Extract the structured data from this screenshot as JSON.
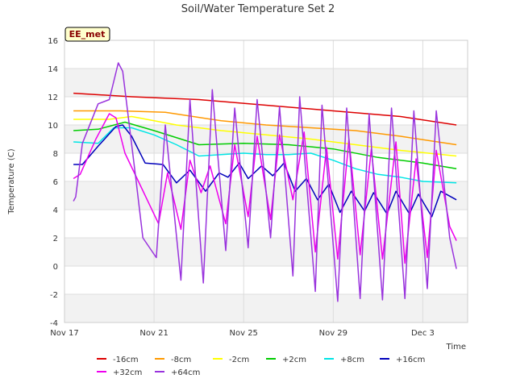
{
  "chart_data": {
    "type": "line",
    "title": "Soil/Water Temperature Set 2",
    "xlabel": "Time",
    "ylabel": "Temperature (C)",
    "badge": "EE_met",
    "x_ticks": [
      "Nov 17",
      "Nov 21",
      "Nov 25",
      "Nov 29",
      "Dec 3"
    ],
    "x_tick_days": [
      0,
      4,
      8,
      12,
      16
    ],
    "xlim_days": [
      0,
      18
    ],
    "ylim": [
      -4,
      16
    ],
    "y_ticks": [
      -4,
      -2,
      0,
      2,
      4,
      6,
      8,
      10,
      12,
      14,
      16
    ],
    "grid": true,
    "legend_position": "bottom",
    "band_color": "#f2f2f2",
    "series": [
      {
        "name": "-16cm",
        "color": "#dd0000",
        "days": [
          0.4,
          3,
          6,
          9,
          12,
          15,
          17.5
        ],
        "values": [
          12.25,
          12.0,
          11.8,
          11.4,
          11.0,
          10.6,
          10.0
        ]
      },
      {
        "name": "-8cm",
        "color": "#ff9900",
        "days": [
          0.4,
          2.5,
          4.5,
          7,
          9,
          11,
          13,
          15,
          17.5
        ],
        "values": [
          11.0,
          11.0,
          10.9,
          10.3,
          10.0,
          9.8,
          9.6,
          9.2,
          8.6
        ]
      },
      {
        "name": "-2cm",
        "color": "#ffff00",
        "days": [
          0.4,
          2,
          3,
          5,
          7,
          9,
          11,
          13,
          15,
          17.5
        ],
        "values": [
          10.4,
          10.4,
          10.6,
          10.0,
          9.6,
          9.3,
          9.0,
          8.6,
          8.2,
          7.8
        ]
      },
      {
        "name": "+2cm",
        "color": "#00cc00",
        "days": [
          0.4,
          1.5,
          2.7,
          4,
          6,
          8,
          10,
          12,
          14,
          16,
          17.5
        ],
        "values": [
          9.6,
          9.7,
          10.2,
          9.6,
          8.6,
          8.7,
          8.6,
          8.3,
          7.7,
          7.3,
          6.9
        ]
      },
      {
        "name": "+8cm",
        "color": "#00e5e5",
        "days": [
          0.4,
          1.5,
          2.2,
          3,
          4,
          5,
          6,
          7,
          8,
          9,
          10,
          11,
          12,
          13,
          14,
          15,
          16,
          17.5
        ],
        "values": [
          8.8,
          8.7,
          9.8,
          9.8,
          9.3,
          8.6,
          7.8,
          7.9,
          8.0,
          7.9,
          7.9,
          8.0,
          7.5,
          6.9,
          6.5,
          6.3,
          6.0,
          5.9
        ]
      },
      {
        "name": "+16cm",
        "color": "#0000bb",
        "days": [
          0.4,
          0.8,
          1.5,
          2.3,
          2.6,
          3,
          3.6,
          4.4,
          5,
          5.6,
          6.3,
          6.9,
          7.3,
          7.8,
          8.2,
          8.8,
          9.3,
          9.8,
          10.3,
          10.8,
          11.3,
          11.8,
          12.3,
          12.8,
          13.4,
          13.8,
          14.4,
          14.8,
          15.4,
          15.8,
          16.4,
          16.8,
          17.5
        ],
        "values": [
          7.2,
          7.2,
          8.5,
          9.9,
          10.0,
          9.2,
          7.3,
          7.2,
          5.9,
          6.8,
          5.3,
          6.6,
          6.3,
          7.3,
          6.2,
          7.1,
          6.4,
          7.3,
          5.3,
          6.2,
          4.7,
          5.8,
          3.8,
          5.3,
          3.9,
          5.2,
          3.7,
          5.3,
          3.7,
          5.1,
          3.5,
          5.3,
          4.7
        ]
      },
      {
        "name": "+32cm",
        "color": "#ee00ee",
        "days": [
          0.4,
          0.7,
          1.4,
          2,
          2.3,
          2.7,
          3.3,
          4.2,
          4.6,
          5.2,
          5.6,
          6.1,
          6.5,
          7.2,
          7.6,
          8.2,
          8.6,
          9.2,
          9.6,
          10.2,
          10.7,
          11.2,
          11.7,
          12.2,
          12.7,
          13.2,
          13.7,
          14.2,
          14.8,
          15.2,
          15.7,
          16.2,
          16.6,
          17.2,
          17.5
        ],
        "values": [
          6.2,
          6.5,
          9.0,
          10.8,
          10.5,
          8.0,
          6.0,
          3.0,
          6.6,
          2.6,
          7.5,
          5.2,
          7.1,
          3.0,
          8.6,
          3.5,
          9.2,
          3.3,
          9.3,
          4.7,
          9.5,
          1.0,
          8.4,
          0.5,
          9.0,
          0.8,
          8.3,
          0.5,
          8.8,
          0.2,
          7.6,
          0.6,
          8.2,
          2.8,
          1.8
        ]
      },
      {
        "name": "+64cm",
        "color": "#9933dd",
        "days": [
          0.4,
          0.5,
          0.8,
          1.5,
          2.0,
          2.4,
          2.6,
          3.2,
          3.5,
          4.1,
          4.5,
          5.2,
          5.6,
          6.2,
          6.6,
          7.2,
          7.6,
          8.2,
          8.6,
          9.2,
          9.6,
          10.2,
          10.5,
          11.2,
          11.5,
          12.2,
          12.6,
          13.2,
          13.6,
          14.2,
          14.6,
          15.2,
          15.6,
          16.2,
          16.6,
          17.2,
          17.5
        ],
        "values": [
          4.6,
          4.9,
          8.7,
          11.5,
          11.8,
          14.4,
          13.8,
          6.0,
          2.0,
          0.6,
          10.0,
          -1.0,
          11.8,
          -1.2,
          12.5,
          1.1,
          11.2,
          1.3,
          11.8,
          2.0,
          11.3,
          -0.7,
          12.0,
          -1.8,
          11.4,
          -2.5,
          11.2,
          -2.3,
          10.8,
          -2.4,
          11.2,
          -2.3,
          11.0,
          -1.6,
          11.0,
          2.0,
          -0.2
        ]
      }
    ]
  }
}
